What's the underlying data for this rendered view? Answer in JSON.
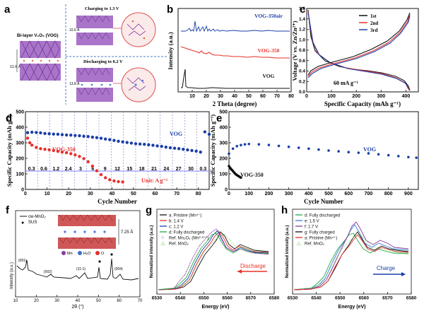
{
  "panels": {
    "a": {
      "letter": "a",
      "left_label": "Bi-layer V₂O₅ (VOG)",
      "spacing_left": "11.6 Å",
      "charge_label": "Charging to 1.3 V",
      "spacing_top": "10.6 Å",
      "discharge_label": "Discharging to 0.2 V",
      "spacing_bottom": "13.8 Å"
    },
    "b": {
      "letter": "b"
    },
    "c": {
      "letter": "c"
    },
    "d": {
      "letter": "d"
    },
    "e": {
      "letter": "e"
    },
    "f": {
      "letter": "f",
      "legend": [
        "cw-MnO₂",
        "SUS"
      ],
      "spacing": "7.25 Å",
      "atom_legend": [
        "Mn",
        "H₂O",
        "O"
      ],
      "peaks": [
        "(001)",
        "(002)",
        "(11-1)",
        "(004)"
      ]
    },
    "g": {
      "letter": "g",
      "arrow_label": "Discharge"
    },
    "h": {
      "letter": "h",
      "arrow_label": "Charge"
    }
  },
  "colors": {
    "purple": "#7a3c9a",
    "red": "#e8302a",
    "blue": "#1a3ea8",
    "grey_line": "#9a9aa0"
  },
  "chart_data": [
    {
      "id": "b",
      "type": "line",
      "xlabel": "2 Theta (degree)",
      "ylabel": "Intensity (a.u.)",
      "xlim": [
        0,
        80
      ],
      "xticks": [
        10,
        20,
        30,
        40,
        50,
        60,
        70,
        80
      ],
      "series": [
        {
          "name": "VOG-350air",
          "color": "#1a3ea8"
        },
        {
          "name": "VOG-350",
          "color": "#e8302a"
        },
        {
          "name": "VOG",
          "color": "#111111"
        }
      ]
    },
    {
      "id": "c",
      "type": "line",
      "xlabel": "Specific Capacity (mAh g⁻¹)",
      "ylabel": "Voltage (V vs. Zn/Zn²⁺)",
      "xlim": [
        0,
        450
      ],
      "ylim": [
        0.0,
        1.6
      ],
      "xticks": [
        0,
        100,
        200,
        300,
        400
      ],
      "yticks": [
        0.0,
        0.2,
        0.4,
        0.6,
        0.8,
        1.0,
        1.2,
        1.4,
        1.6
      ],
      "annotation": "60 mA g⁻¹",
      "series": [
        {
          "name": "1st",
          "color": "#111111"
        },
        {
          "name": "2nd",
          "color": "#e8302a"
        },
        {
          "name": "3rd",
          "color": "#1a3ea8"
        }
      ]
    },
    {
      "id": "d",
      "type": "scatter",
      "xlabel": "Cycle Number",
      "ylabel": "Specific Capacity (mAh g⁻¹)",
      "xlim": [
        0,
        85
      ],
      "ylim": [
        0,
        500
      ],
      "xticks": [
        0,
        10,
        20,
        30,
        40,
        50,
        60,
        70,
        80
      ],
      "yticks": [
        0,
        100,
        200,
        300,
        400,
        500
      ],
      "rates": [
        "0.3",
        "0.6",
        "1.2",
        "2.4",
        "3",
        "6",
        "9",
        "12",
        "15",
        "18",
        "21",
        "24",
        "27",
        "30",
        "0.3"
      ],
      "unit_label": "Unit: A g⁻¹",
      "series": [
        {
          "name": "VOG",
          "color": "#1a3ea8",
          "x": [
            1,
            3,
            5,
            7,
            9,
            11,
            13,
            15,
            17,
            19,
            21,
            23,
            25,
            27,
            29,
            31,
            33,
            35,
            37,
            39,
            41,
            43,
            45,
            47,
            49,
            51,
            53,
            55,
            57,
            59,
            61,
            63,
            65,
            67,
            69,
            71,
            73,
            75,
            77,
            79,
            81,
            83,
            85
          ],
          "y": [
            365,
            368,
            366,
            364,
            360,
            358,
            356,
            355,
            352,
            350,
            349,
            347,
            345,
            342,
            340,
            336,
            333,
            329,
            324,
            320,
            315,
            310,
            306,
            302,
            298,
            294,
            292,
            290,
            287,
            284,
            280,
            277,
            272,
            268,
            265,
            262,
            258,
            254,
            250,
            246,
            240,
            370,
            355
          ]
        },
        {
          "name": "VOG-350",
          "color": "#e8302a",
          "x": [
            1,
            2,
            3,
            5,
            7,
            9,
            11,
            13,
            15,
            17,
            19,
            21,
            23,
            25,
            27,
            29,
            31,
            33,
            35,
            37,
            39,
            41,
            43,
            45
          ],
          "y": [
            330,
            300,
            285,
            270,
            262,
            258,
            255,
            250,
            245,
            240,
            236,
            230,
            222,
            212,
            198,
            178,
            150,
            120,
            95,
            75,
            62,
            55,
            50,
            48
          ]
        }
      ]
    },
    {
      "id": "e",
      "type": "scatter",
      "xlabel": "Cycle Number",
      "ylabel": "Specific Capacity (mAh g⁻¹)",
      "xlim": [
        0,
        950
      ],
      "ylim": [
        0,
        500
      ],
      "xticks": [
        0,
        100,
        200,
        300,
        400,
        500,
        600,
        700,
        800,
        900
      ],
      "yticks": [
        0,
        100,
        200,
        300,
        400,
        500
      ],
      "series": [
        {
          "name": "VOG",
          "color": "#1a3ea8",
          "x": [
            0,
            20,
            40,
            60,
            80,
            100,
            150,
            200,
            250,
            300,
            350,
            400,
            450,
            500,
            550,
            600,
            650,
            700,
            750,
            800,
            850,
            900,
            940
          ],
          "y": [
            230,
            262,
            278,
            285,
            290,
            292,
            290,
            286,
            280,
            274,
            268,
            262,
            256,
            250,
            245,
            240,
            236,
            232,
            226,
            220,
            214,
            208,
            204
          ]
        },
        {
          "name": "VOG-350",
          "color": "#111111",
          "x": [
            0,
            5,
            10,
            15,
            20,
            25,
            30,
            35,
            40,
            45,
            50,
            55,
            60
          ],
          "y": [
            150,
            140,
            132,
            125,
            118,
            110,
            103,
            97,
            92,
            88,
            84,
            80,
            76
          ]
        }
      ]
    },
    {
      "id": "f",
      "type": "line",
      "xlabel": "2θ (°)",
      "ylabel": "Intensity (a.u.)",
      "xlim": [
        10,
        70
      ],
      "xticks": [
        10,
        20,
        30,
        40,
        50,
        60,
        70
      ]
    },
    {
      "id": "g",
      "type": "line",
      "xlabel": "Energy (eV)",
      "ylabel": "Normalized intensity (a.u.)",
      "xlim": [
        6530,
        6580
      ],
      "xticks": [
        6530,
        6540,
        6550,
        6560,
        6570,
        6580
      ],
      "series": [
        {
          "name": "a: Pristine (Mn⁴⁺)",
          "color": "#111111"
        },
        {
          "name": "b: 1.4 V",
          "color": "#e8302a"
        },
        {
          "name": "c: 1.2 V",
          "color": "#1a3ea8"
        },
        {
          "name": "d: Fully discharged",
          "color": "#1faa4a"
        },
        {
          "name": "Ref. Mn₃O₄ (Mn²·⁶⁷⁺)",
          "color": "#8a3c9a"
        },
        {
          "name": "Ref. MnO₂",
          "color": "#5fbf3a"
        }
      ]
    },
    {
      "id": "h",
      "type": "line",
      "xlabel": "Energy (eV)",
      "ylabel": "Normalized intensity (a.u.)",
      "xlim": [
        6530,
        6580
      ],
      "xticks": [
        6530,
        6540,
        6550,
        6560,
        6570,
        6580
      ],
      "series": [
        {
          "name": "d: Fully discharged",
          "color": "#1faa4a"
        },
        {
          "name": "e: 1.5 V",
          "color": "#3c7fd8"
        },
        {
          "name": "f: 1.7 V",
          "color": "#8a3c9a"
        },
        {
          "name": "g: Fully charged",
          "color": "#111111"
        },
        {
          "name": "a: Pristine (Mn⁴⁺)",
          "color": "#e8302a"
        },
        {
          "name": "Ref. MnO₂",
          "color": "#5fbf3a"
        }
      ]
    }
  ]
}
